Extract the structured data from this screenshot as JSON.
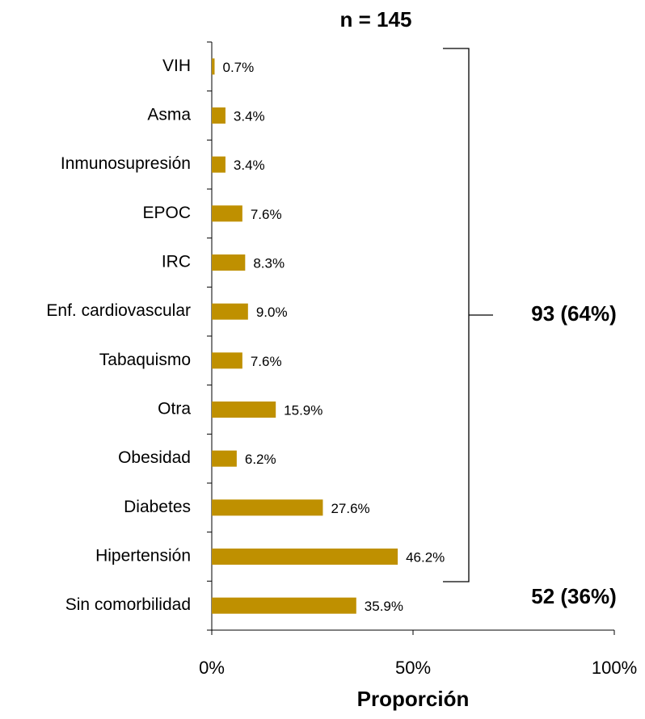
{
  "chart_data": {
    "type": "bar",
    "orientation": "horizontal",
    "title": "n = 145",
    "categories": [
      "VIH",
      "Asma",
      "Inmunosupresión",
      "EPOC",
      "IRC",
      "Enf. cardiovascular",
      "Tabaquismo",
      "Otra",
      "Obesidad",
      "Diabetes",
      "Hipertensión",
      "Sin comorbilidad"
    ],
    "values": [
      0.7,
      3.4,
      3.4,
      7.6,
      8.3,
      9.0,
      7.6,
      15.9,
      6.2,
      27.6,
      46.2,
      35.9
    ],
    "value_labels": [
      "0.7%",
      "3.4%",
      "3.4%",
      "7.6%",
      "8.3%",
      "9.0%",
      "7.6%",
      "15.9%",
      "6.2%",
      "27.6%",
      "46.2%",
      "35.9%"
    ],
    "color": "#bf9000",
    "xlim": [
      0,
      100
    ],
    "xticks": [
      {
        "value": 0,
        "label": "0%"
      },
      {
        "value": 50,
        "label": "50%"
      },
      {
        "value": 100,
        "label": "100%"
      }
    ],
    "x_label": "Proporción",
    "annotations": [
      "93 (64%)",
      "52 (36%)"
    ]
  }
}
